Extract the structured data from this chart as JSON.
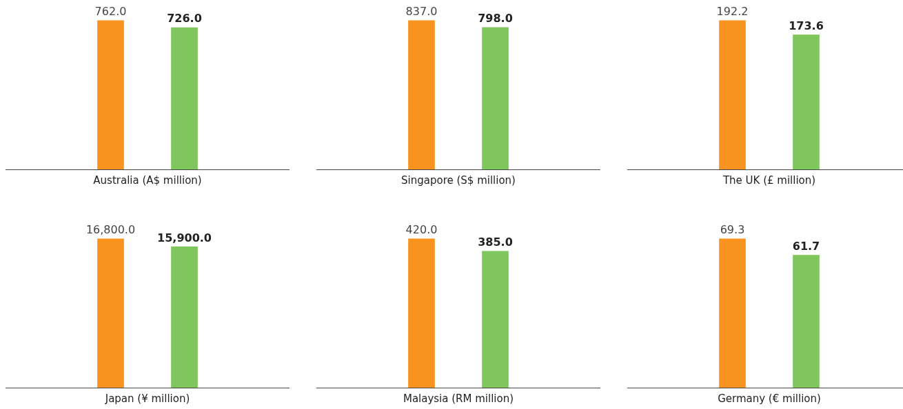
{
  "chart_data": [
    {
      "type": "bar",
      "xlabel": "Australia (A$ million)",
      "categories": [
        null,
        null
      ],
      "values": [
        762.0,
        726.0
      ],
      "value_labels": [
        "762.0",
        "726.0"
      ],
      "colors": [
        "#f7931e",
        "#7fc65c"
      ]
    },
    {
      "type": "bar",
      "xlabel": "Singapore (S$ million)",
      "categories": [
        null,
        null
      ],
      "values": [
        837.0,
        798.0
      ],
      "value_labels": [
        "837.0",
        "798.0"
      ],
      "colors": [
        "#f7931e",
        "#7fc65c"
      ]
    },
    {
      "type": "bar",
      "xlabel": "The UK (£ million)",
      "categories": [
        null,
        null
      ],
      "values": [
        192.2,
        173.6
      ],
      "value_labels": [
        "192.2",
        "173.6"
      ],
      "colors": [
        "#f7931e",
        "#7fc65c"
      ]
    },
    {
      "type": "bar",
      "xlabel": "Japan (¥ million)",
      "categories": [
        null,
        null
      ],
      "values": [
        16800.0,
        15900.0
      ],
      "value_labels": [
        "16,800.0",
        "15,900.0"
      ],
      "colors": [
        "#f7931e",
        "#7fc65c"
      ]
    },
    {
      "type": "bar",
      "xlabel": "Malaysia (RM million)",
      "categories": [
        null,
        null
      ],
      "values": [
        420.0,
        385.0
      ],
      "value_labels": [
        "420.0",
        "385.0"
      ],
      "colors": [
        "#f7931e",
        "#7fc65c"
      ]
    },
    {
      "type": "bar",
      "xlabel": "Germany (€ million)",
      "categories": [
        null,
        null
      ],
      "values": [
        69.3,
        61.7
      ],
      "value_labels": [
        "69.3",
        "61.7"
      ],
      "colors": [
        "#f7931e",
        "#7fc65c"
      ]
    }
  ]
}
